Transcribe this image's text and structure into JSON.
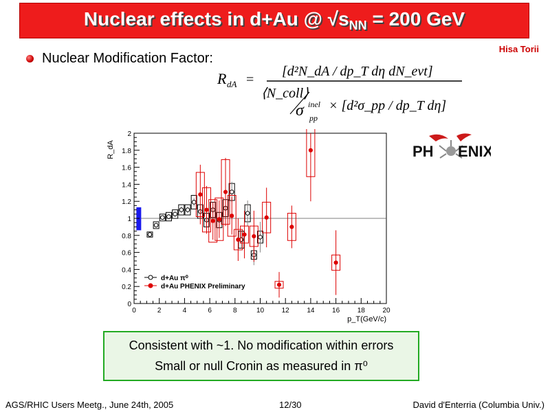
{
  "title": {
    "main": "Nuclear effects in d+Au @ √s",
    "sub": "NN",
    "rest": " = 200 GeV"
  },
  "author": "Hisa Torii",
  "bullet": "Nuclear Modification Factor:",
  "formula": {
    "lhs": "R",
    "lhs_sub": "dA",
    "numerator": "[d²N_dA / dp_T dη dN_evt]",
    "ncoll": "⟨N_coll⟩",
    "sigma": "σ",
    "sigma_sup": "inel",
    "sigma_sub": "pp",
    "denominator_bracket": "× [d²σ_pp / dp_T dη]"
  },
  "logo": {
    "left": "PH",
    "right": "ENIX"
  },
  "conclusion": {
    "line1": "Consistent with ~1. No modification within errors",
    "line2": "Small or null Cronin as measured in π⁰"
  },
  "footer": {
    "left": "AGS/RHIC Users Meetg., June 24th, 2005",
    "center": "12/30",
    "right": "David d'Enterria (Columbia Univ.)"
  },
  "chart_data": {
    "type": "scatter",
    "ylabel": "R_dA",
    "xlabel": "p_T(GeV/c)",
    "xlim": [
      0,
      20
    ],
    "ylim": [
      0,
      2
    ],
    "x_ticks": [
      "0",
      "2",
      "4",
      "6",
      "8",
      "10",
      "12",
      "14",
      "16",
      "18",
      "20"
    ],
    "y_ticks": [
      "0",
      "0.2",
      "0.4",
      "0.6",
      "0.8",
      "1",
      "1.2",
      "1.4",
      "1.6",
      "1.8",
      "2"
    ],
    "reference_line": 1,
    "norm_box": {
      "x": 0.4,
      "low": 0.86,
      "high": 1.13,
      "color": "#1a1aee"
    },
    "legend": [
      {
        "name": "d+Au π⁰",
        "marker": "open-circle",
        "color": "#000000"
      },
      {
        "name": "d+Au PHENIX Preliminary",
        "marker": "filled-circle",
        "color": "#dd0000"
      }
    ],
    "series": [
      {
        "name": "d+Au π⁰",
        "color": "#000000",
        "points": [
          {
            "x": 1.25,
            "y": 0.81,
            "e": 0.02,
            "s": 0.03
          },
          {
            "x": 1.75,
            "y": 0.92,
            "e": 0.02,
            "s": 0.04
          },
          {
            "x": 2.25,
            "y": 1.01,
            "e": 0.02,
            "s": 0.04
          },
          {
            "x": 2.75,
            "y": 1.02,
            "e": 0.03,
            "s": 0.05
          },
          {
            "x": 3.25,
            "y": 1.05,
            "e": 0.03,
            "s": 0.05
          },
          {
            "x": 3.75,
            "y": 1.1,
            "e": 0.04,
            "s": 0.06
          },
          {
            "x": 4.25,
            "y": 1.1,
            "e": 0.04,
            "s": 0.06
          },
          {
            "x": 4.75,
            "y": 1.19,
            "e": 0.05,
            "s": 0.08
          },
          {
            "x": 5.25,
            "y": 1.08,
            "e": 0.06,
            "s": 0.08
          },
          {
            "x": 5.75,
            "y": 0.98,
            "e": 0.07,
            "s": 0.08
          },
          {
            "x": 6.25,
            "y": 1.1,
            "e": 0.08,
            "s": 0.09
          },
          {
            "x": 6.75,
            "y": 0.98,
            "e": 0.09,
            "s": 0.09
          },
          {
            "x": 7.25,
            "y": 1.12,
            "e": 0.1,
            "s": 0.1
          },
          {
            "x": 7.75,
            "y": 1.31,
            "e": 0.12,
            "s": 0.1
          },
          {
            "x": 8.5,
            "y": 0.75,
            "e": 0.1,
            "s": 0.1
          },
          {
            "x": 9.0,
            "y": 1.06,
            "e": 0.15,
            "s": 0.1
          },
          {
            "x": 9.5,
            "y": 0.57,
            "e": 0.12,
            "s": 0.05
          },
          {
            "x": 10.0,
            "y": 0.78,
            "e": 0.18,
            "s": 0.07
          }
        ]
      },
      {
        "name": "d+Au PHENIX Preliminary",
        "color": "#dd0000",
        "points": [
          {
            "x": 5.25,
            "y": 1.28,
            "e": 0.35,
            "s": 0.26
          },
          {
            "x": 5.75,
            "y": 1.1,
            "e": 0.28,
            "s": 0.26
          },
          {
            "x": 6.25,
            "y": 0.97,
            "e": 0.22,
            "s": 0.25
          },
          {
            "x": 6.75,
            "y": 0.99,
            "e": 0.22,
            "s": 0.25
          },
          {
            "x": 7.25,
            "y": 1.31,
            "e": 0.4,
            "s": 0.38
          },
          {
            "x": 7.75,
            "y": 1.03,
            "e": 0.22,
            "s": 0.24
          },
          {
            "x": 8.25,
            "y": 0.75,
            "e": 0.25,
            "s": 0.12
          },
          {
            "x": 8.75,
            "y": 0.81,
            "e": 0.28,
            "s": 0.1
          },
          {
            "x": 9.5,
            "y": 0.79,
            "e": 0.3,
            "s": 0.12
          },
          {
            "x": 10.5,
            "y": 1.01,
            "e": 0.35,
            "s": 0.18
          },
          {
            "x": 11.5,
            "y": 0.22,
            "e": 0.15,
            "s": 0.04
          },
          {
            "x": 12.5,
            "y": 0.9,
            "e": 0.25,
            "s": 0.16
          },
          {
            "x": 14.0,
            "y": 1.8,
            "e": 0.6,
            "s": 0.31
          },
          {
            "x": 16.0,
            "y": 0.48,
            "e": 0.38,
            "s": 0.09
          }
        ]
      }
    ]
  }
}
